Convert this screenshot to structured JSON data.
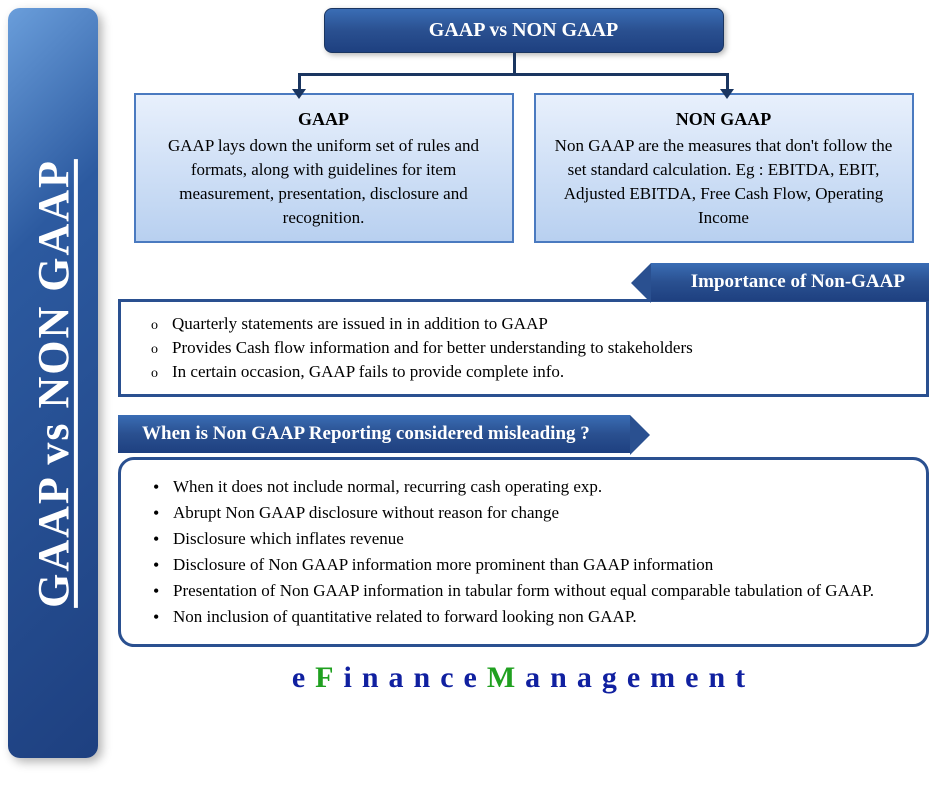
{
  "colors": {
    "primary_blue": "#2a5090",
    "gradient_light": "#e8f0fc",
    "gradient_dark": "#b8d0f0",
    "border_blue": "#4a7ac0",
    "text_black": "#000000",
    "white": "#ffffff",
    "logo_blue": "#1020a0",
    "logo_green": "#20a020"
  },
  "sidebar": {
    "title": "GAAP vs NON GAAP"
  },
  "header": {
    "title": "GAAP  vs NON GAAP"
  },
  "definitions": {
    "gaap": {
      "title": "GAAP",
      "body": "GAAP lays down the uniform set of rules and formats, along with guidelines for item measurement, presentation, disclosure and recognition."
    },
    "nongaap": {
      "title": "NON GAAP",
      "body": "Non GAAP are the measures that don't follow the set standard calculation. Eg : EBITDA, EBIT, Adjusted EBITDA, Free Cash Flow, Operating Income"
    }
  },
  "importance": {
    "heading": "Importance of Non-GAAP",
    "items": [
      "Quarterly statements are issued in in addition to GAAP",
      "Provides Cash flow information and for better understanding to stakeholders",
      "In certain occasion, GAAP fails to provide complete info."
    ]
  },
  "misleading": {
    "heading": "When is Non GAAP Reporting considered misleading ?",
    "items": [
      "When it does not include normal, recurring cash operating exp.",
      "Abrupt Non GAAP disclosure without reason for change",
      "Disclosure which inflates revenue",
      "Disclosure of Non GAAP information more prominent than GAAP information",
      "Presentation of Non GAAP information in tabular form without equal comparable tabulation of GAAP.",
      "Non inclusion of quantitative related to forward looking non GAAP."
    ]
  },
  "logo": {
    "parts": [
      {
        "text": "e",
        "cls": "blue"
      },
      {
        "text": "F",
        "cls": "green"
      },
      {
        "text": "inance",
        "cls": "blue"
      },
      {
        "text": "M",
        "cls": "green"
      },
      {
        "text": "anagement",
        "cls": "blue"
      }
    ]
  }
}
